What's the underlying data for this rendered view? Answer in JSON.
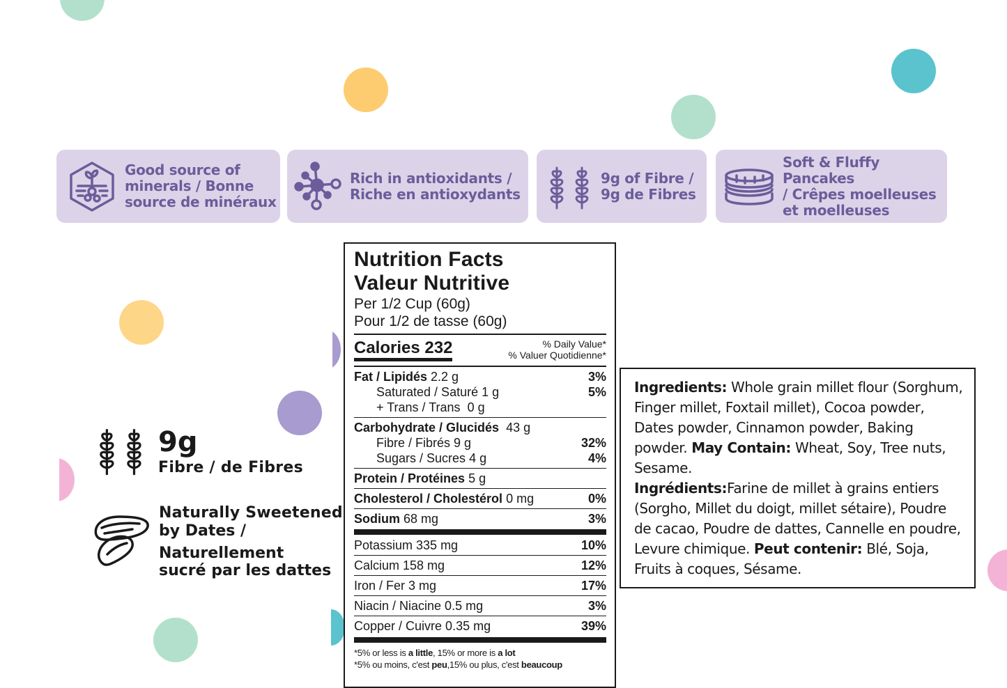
{
  "badges": [
    {
      "icon": "minerals-icon",
      "text": "Good source of\nminerals / Bonne\nsource de minéraux"
    },
    {
      "icon": "antioxidant-molecule-icon",
      "text": "Rich in antioxidants /\nRiche en antioxydants"
    },
    {
      "icon": "wheat-fibre-icon",
      "text": "9g of Fibre /\n9g de Fibres"
    },
    {
      "icon": "pancake-stack-icon",
      "text": "Soft & Fluffy Pancakes\n/ Crêpes moelleuses\net moelleuses"
    }
  ],
  "features": {
    "fibre": {
      "icon": "wheat-fibre-icon",
      "amount": "9g",
      "label": "Fibre / de Fibres"
    },
    "dates": {
      "icon": "dates-icon",
      "line1": "Naturally Sweetened",
      "line2": "by Dates /",
      "line3": "Naturellement",
      "line4": "sucré par les dattes"
    }
  },
  "nutrition": {
    "title_en": "Nutrition Facts",
    "title_fr": "Valeur Nutritive",
    "serving_en": "Per 1/2 Cup (60g)",
    "serving_fr": "Pour 1/2 de tasse (60g)",
    "calories": "Calories 232",
    "dv_en": "% Daily Value*",
    "dv_fr": "% Valuer Quotidienne*",
    "fat": {
      "label": "Fat / Lipidés",
      "amount": "2.2 g",
      "pct": "3%"
    },
    "sat": {
      "label": "Saturated / Saturé",
      "amount": "1 g",
      "pct": "5%"
    },
    "trans": {
      "label": "+ Trans / Trans",
      "amount": "0 g"
    },
    "carb": {
      "label": "Carbohydrate / Glucidés",
      "amount": "43 g"
    },
    "fibre": {
      "label": "Fibre / Fibrés",
      "amount": "9 g",
      "pct": "32%"
    },
    "sugars": {
      "label": "Sugars / Sucres",
      "amount": "4 g",
      "pct": "4%"
    },
    "protein": {
      "label": "Protein / Protéines",
      "amount": "5 g"
    },
    "cholesterol": {
      "label": "Cholesterol / Cholestérol",
      "amount": "0 mg",
      "pct": "0%"
    },
    "sodium": {
      "label": "Sodium",
      "amount": "68 mg",
      "pct": "3%"
    },
    "minerals": [
      {
        "text": "Potassium 335 mg",
        "pct": "10%"
      },
      {
        "text": "Calcium 158 mg",
        "pct": "12%"
      },
      {
        "text": "Iron / Fer 3 mg",
        "pct": "17%"
      },
      {
        "text": "Niacin / Niacine 0.5 mg",
        "pct": "3%"
      },
      {
        "text": "Copper / Cuivre 0.35 mg",
        "pct": "39%"
      }
    ],
    "foot_en_a": "*5% or less is ",
    "foot_en_b": "a little",
    "foot_en_c": ", 15% or more is ",
    "foot_en_d": "a lot",
    "foot_fr_a": "*5% ou moins, c'est ",
    "foot_fr_b": "peu",
    "foot_fr_c": ",15% ou plus, c'est ",
    "foot_fr_d": "beaucoup"
  },
  "ingredients": {
    "en_label": "Ingredients:",
    "en_text": " Whole grain millet flour (Sorghum, Finger millet, Foxtail millet), Cocoa powder, Dates powder, Cinnamon powder, Baking powder. ",
    "en_may_label": "May Contain:",
    "en_may_text": " Wheat, Soy, Tree nuts, Sesame.",
    "fr_label": "Ingrédients:",
    "fr_text": "Farine de millet à grains entiers (Sorgho, Millet du doigt, millet sétaire), Poudre de cacao, Poudre de dattes, Cannelle en poudre, Levure chimique. ",
    "fr_may_label": "Peut contenir:",
    "fr_may_text": " Blé, Soja, Fruits à coques, Sésame."
  },
  "colors": {
    "badge_bg": "#dcd3e9",
    "badge_fg": "#6a5d9a",
    "mint": "#b3e0cc",
    "peach": "#fdcc70",
    "teal": "#5bc3ce",
    "lavender": "#a89bcf",
    "pink": "#f3b3d6",
    "yellow": "#fdd688"
  }
}
